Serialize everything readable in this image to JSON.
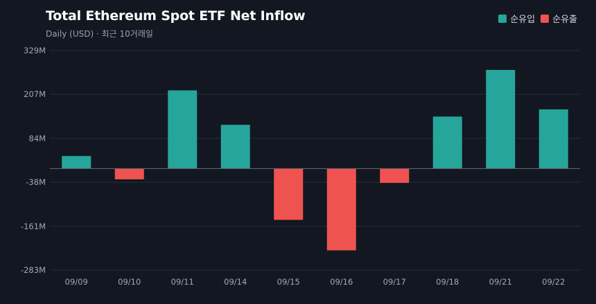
{
  "chart_data": {
    "type": "bar",
    "title": "Total Ethereum Spot ETF Net Inflow",
    "subtitle": "Daily (USD) · 최근 10거래일",
    "categories": [
      "09/09",
      "09/10",
      "09/11",
      "09/14",
      "09/15",
      "09/16",
      "09/17",
      "09/18",
      "09/21",
      "09/22"
    ],
    "values": [
      35,
      -30,
      218,
      122,
      -143,
      -228,
      -40,
      145,
      275,
      165
    ],
    "unit": "M",
    "y_ticks": [
      329,
      207,
      84,
      -38,
      -161,
      -283
    ],
    "y_tick_labels": [
      "329M",
      "207M",
      "84M",
      "-38M",
      "-161M",
      "-283M"
    ],
    "ylim": [
      -283,
      329
    ],
    "legend": [
      {
        "label": "순유입",
        "color": "#26a69a"
      },
      {
        "label": "순유출",
        "color": "#ef5350"
      }
    ],
    "legend_position": "top-right",
    "grid": true
  },
  "colors": {
    "positive": "#26a69a",
    "negative": "#ef5350",
    "background": "#131722",
    "grid": "#2a2e39",
    "zero_line": "#5d6270"
  }
}
